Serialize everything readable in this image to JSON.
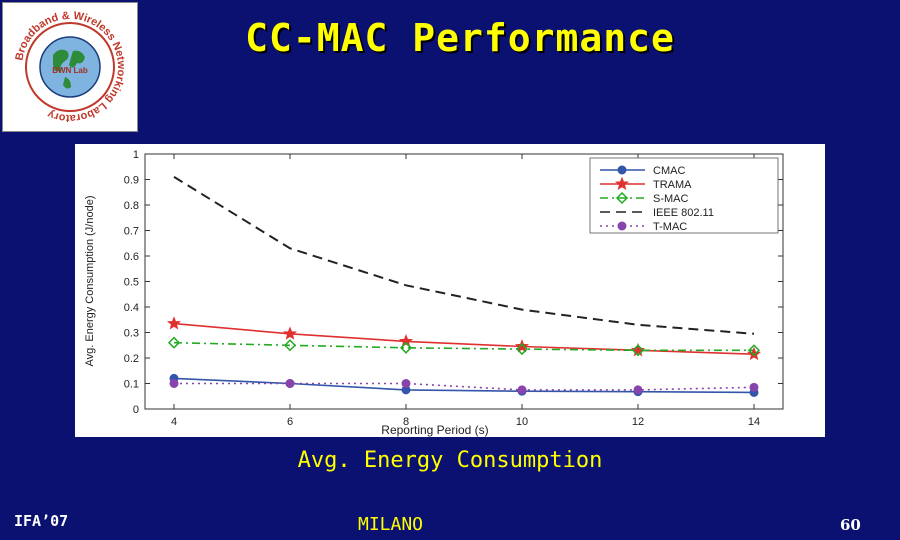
{
  "slide": {
    "title": "CC-MAC Performance",
    "caption": "Avg. Energy Consumption",
    "footer_left": "IFA’07",
    "footer_center": "MILANO",
    "page_number": "60"
  },
  "logo": {
    "ring_text": "Broadband & Wireless Networking Laboratory",
    "center_text": "BWN Lab"
  },
  "colors": {
    "background": "#0a1170",
    "title": "#ffff00",
    "cmac": "#3355aa",
    "trama": "#e03030",
    "smac": "#22aa22",
    "ieee": "#222222",
    "tmac": "#8844aa"
  },
  "chart_data": {
    "type": "line",
    "x": [
      4,
      6,
      8,
      10,
      12,
      14
    ],
    "xlabel": "Reporting Period (s)",
    "ylabel": "Avg. Energy Consumption (J/node)",
    "xlim": [
      3.5,
      14.5
    ],
    "ylim": [
      0,
      1
    ],
    "xticks": [
      4,
      6,
      8,
      10,
      12,
      14
    ],
    "yticks": [
      0,
      0.1,
      0.2,
      0.3,
      0.4,
      0.5,
      0.6,
      0.7,
      0.8,
      0.9,
      1
    ],
    "grid": false,
    "legend_position": "top-right",
    "series": [
      {
        "name": "CMAC",
        "values": [
          0.12,
          0.1,
          0.075,
          0.07,
          0.068,
          0.065
        ],
        "color": "#3355aa",
        "dash": "solid",
        "marker": "circle"
      },
      {
        "name": "TRAMA",
        "values": [
          0.335,
          0.295,
          0.265,
          0.245,
          0.23,
          0.215
        ],
        "color": "#e03030",
        "dash": "solid",
        "marker": "star"
      },
      {
        "name": "S-MAC",
        "values": [
          0.26,
          0.25,
          0.24,
          0.235,
          0.23,
          0.23
        ],
        "color": "#22aa22",
        "dash": "dashdot",
        "marker": "diamond"
      },
      {
        "name": "IEEE 802.11",
        "values": [
          0.91,
          0.63,
          0.485,
          0.39,
          0.33,
          0.295
        ],
        "color": "#222222",
        "dash": "dash",
        "marker": "none"
      },
      {
        "name": "T-MAC",
        "values": [
          0.1,
          0.1,
          0.1,
          0.075,
          0.075,
          0.085
        ],
        "color": "#8844aa",
        "dash": "dot",
        "marker": "circle"
      }
    ]
  }
}
